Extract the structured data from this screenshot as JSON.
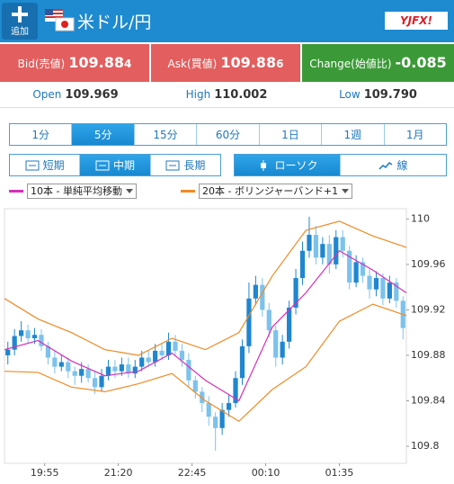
{
  "header": {
    "add_label": "追加",
    "title": "米ドル/円",
    "logo": "YJFX!"
  },
  "quotes": {
    "bid": {
      "label": "Bid(売値)",
      "value": "109.88",
      "pip": "4"
    },
    "ask": {
      "label": "Ask(買値)",
      "value": "109.88",
      "pip": "6"
    },
    "change": {
      "label": "Change(始値比)",
      "value": "-0.085"
    },
    "open": {
      "label": "Open",
      "value": "109.969"
    },
    "high": {
      "label": "High",
      "value": "110.002"
    },
    "low": {
      "label": "Low",
      "value": "109.790"
    }
  },
  "timeframes": {
    "items": [
      "1分",
      "5分",
      "15分",
      "60分",
      "1日",
      "1週",
      "1月"
    ],
    "selected": 1
  },
  "terms": {
    "items": [
      "短期",
      "中期",
      "長期"
    ],
    "selected": 1
  },
  "styles": {
    "items": [
      "ローソク",
      "線"
    ],
    "selected": 0
  },
  "chart_data": {
    "type": "candlestick",
    "up_color": "#1f86cf",
    "down_color": "#7cc2ec",
    "open": [
      109.88,
      109.885,
      109.897,
      109.902,
      109.895,
      109.898,
      109.888,
      109.878,
      109.87,
      109.874,
      109.866,
      109.862,
      109.868,
      109.86,
      109.852,
      109.862,
      109.87,
      109.866,
      109.872,
      109.864,
      109.87,
      109.878,
      109.874,
      109.884,
      109.88,
      109.892,
      109.884,
      109.876,
      109.858,
      109.848,
      109.838,
      109.826,
      109.816,
      109.832,
      109.838,
      109.86,
      109.888,
      109.93,
      109.942,
      109.92,
      109.902,
      109.878,
      109.892,
      109.922,
      109.948,
      109.972,
      109.986,
      109.966,
      109.978,
      109.96,
      109.984,
      109.972,
      109.944,
      109.962,
      109.95,
      109.938,
      109.948,
      109.93,
      109.944,
      109.928
    ],
    "high": [
      109.892,
      109.903,
      109.91,
      109.907,
      109.904,
      109.903,
      109.892,
      109.884,
      109.88,
      109.878,
      109.87,
      109.874,
      109.872,
      109.866,
      109.868,
      109.876,
      109.876,
      109.878,
      109.878,
      109.876,
      109.884,
      109.884,
      109.89,
      109.89,
      109.9,
      109.898,
      109.89,
      109.882,
      109.862,
      109.852,
      109.844,
      109.83,
      109.838,
      109.846,
      109.866,
      109.894,
      109.944,
      109.95,
      109.948,
      109.926,
      109.906,
      109.898,
      109.928,
      109.956,
      109.98,
      110.002,
      109.994,
      109.984,
      109.986,
      109.99,
      109.99,
      109.976,
      109.968,
      109.966,
      109.956,
      109.954,
      109.952,
      109.95,
      109.948,
      109.932
    ],
    "low": [
      109.872,
      109.88,
      109.892,
      109.89,
      109.89,
      109.884,
      109.872,
      109.864,
      109.866,
      109.86,
      109.854,
      109.856,
      109.856,
      109.846,
      109.848,
      109.858,
      109.86,
      109.862,
      109.86,
      109.86,
      109.866,
      109.87,
      109.87,
      109.876,
      109.876,
      109.88,
      109.87,
      109.852,
      109.842,
      109.83,
      109.818,
      109.796,
      109.81,
      109.826,
      109.834,
      109.854,
      109.882,
      109.924,
      109.914,
      109.896,
      109.87,
      109.872,
      109.886,
      109.916,
      109.942,
      109.966,
      109.96,
      109.96,
      109.952,
      109.956,
      109.966,
      109.938,
      109.94,
      109.944,
      109.93,
      109.932,
      109.924,
      109.926,
      109.922,
      109.894
    ],
    "close": [
      109.885,
      109.897,
      109.902,
      109.895,
      109.898,
      109.888,
      109.878,
      109.87,
      109.874,
      109.866,
      109.862,
      109.868,
      109.86,
      109.852,
      109.862,
      109.87,
      109.866,
      109.872,
      109.864,
      109.87,
      109.878,
      109.874,
      109.884,
      109.88,
      109.892,
      109.884,
      109.876,
      109.858,
      109.848,
      109.838,
      109.826,
      109.816,
      109.832,
      109.838,
      109.86,
      109.888,
      109.93,
      109.942,
      109.92,
      109.902,
      109.878,
      109.892,
      109.922,
      109.948,
      109.972,
      109.986,
      109.966,
      109.978,
      109.96,
      109.984,
      109.972,
      109.944,
      109.962,
      109.95,
      109.938,
      109.948,
      109.93,
      109.944,
      109.928,
      109.904
    ],
    "indicators": [
      {
        "name": "10本 - 単純平均移動",
        "color": "#d62fb8",
        "x": [
          0,
          5,
          10,
          15,
          20,
          25,
          30,
          35,
          40,
          45,
          50,
          55,
          60
        ],
        "lines": [
          [
            109.885,
            109.893,
            109.875,
            109.862,
            109.866,
            109.882,
            109.858,
            109.84,
            109.905,
            109.935,
            109.972,
            109.955,
            109.935
          ]
        ]
      },
      {
        "name": "20本 - ボリンジャーバンド+1",
        "color": "#f08a24",
        "x": [
          0,
          5,
          10,
          15,
          20,
          25,
          30,
          35,
          40,
          45,
          50,
          55,
          60
        ],
        "lines": [
          [
            109.93,
            109.912,
            109.9,
            109.885,
            109.88,
            109.895,
            109.885,
            109.9,
            109.95,
            109.99,
            109.998,
            109.985,
            109.975
          ],
          [
            109.866,
            109.865,
            109.852,
            109.848,
            109.855,
            109.864,
            109.84,
            109.822,
            109.85,
            109.87,
            109.91,
            109.925,
            109.915
          ]
        ]
      }
    ],
    "xlim": [
      0,
      60
    ],
    "xticks": [
      {
        "value": 6,
        "label": "19:55"
      },
      {
        "value": 17,
        "label": "21:20"
      },
      {
        "value": 28,
        "label": "22:45"
      },
      {
        "value": 39,
        "label": "00:10"
      },
      {
        "value": 50,
        "label": "01:35"
      }
    ],
    "ylim": [
      109.785,
      110.009
    ],
    "yticks": [
      110,
      109.96,
      109.92,
      109.88,
      109.84,
      109.8
    ],
    "grid": false
  }
}
